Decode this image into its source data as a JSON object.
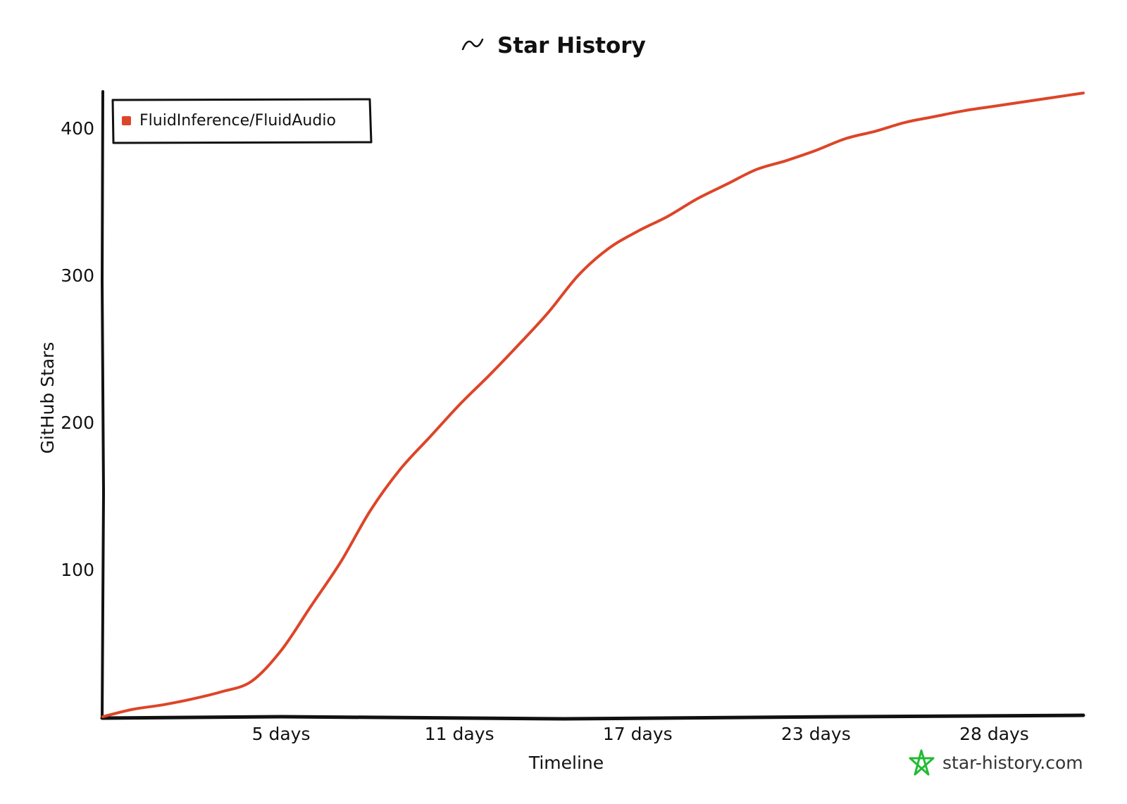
{
  "chart_data": {
    "type": "line",
    "title": "Star History",
    "xlabel": "Timeline",
    "ylabel": "GitHub Stars",
    "xlim": [
      0,
      33
    ],
    "ylim": [
      0,
      425
    ],
    "x_ticks": [
      {
        "value": 6,
        "label": "5 days"
      },
      {
        "value": 12,
        "label": "11 days"
      },
      {
        "value": 18,
        "label": "17 days"
      },
      {
        "value": 24,
        "label": "23 days"
      },
      {
        "value": 30,
        "label": "28 days"
      }
    ],
    "y_ticks": [
      100,
      200,
      300,
      400
    ],
    "legend_position": "top-left",
    "grid": false,
    "series": [
      {
        "name": "FluidInference/FluidAudio",
        "color": "#dd4528",
        "x": [
          0,
          1,
          2,
          3,
          4,
          5,
          6,
          7,
          8,
          9,
          10,
          11,
          12,
          13,
          14,
          15,
          16,
          17,
          18,
          19,
          20,
          21,
          22,
          23,
          24,
          25,
          26,
          27,
          28,
          29,
          30,
          31,
          32,
          33
        ],
        "y": [
          0,
          5,
          8,
          12,
          17,
          24,
          45,
          75,
          105,
          140,
          168,
          190,
          212,
          232,
          253,
          275,
          300,
          318,
          330,
          340,
          352,
          362,
          372,
          378,
          385,
          393,
          398,
          404,
          408,
          412,
          415,
          418,
          421,
          424
        ]
      }
    ]
  },
  "watermark": {
    "text": "star-history.com",
    "icon": "star-history-logo-icon",
    "color": "#22bb33"
  }
}
